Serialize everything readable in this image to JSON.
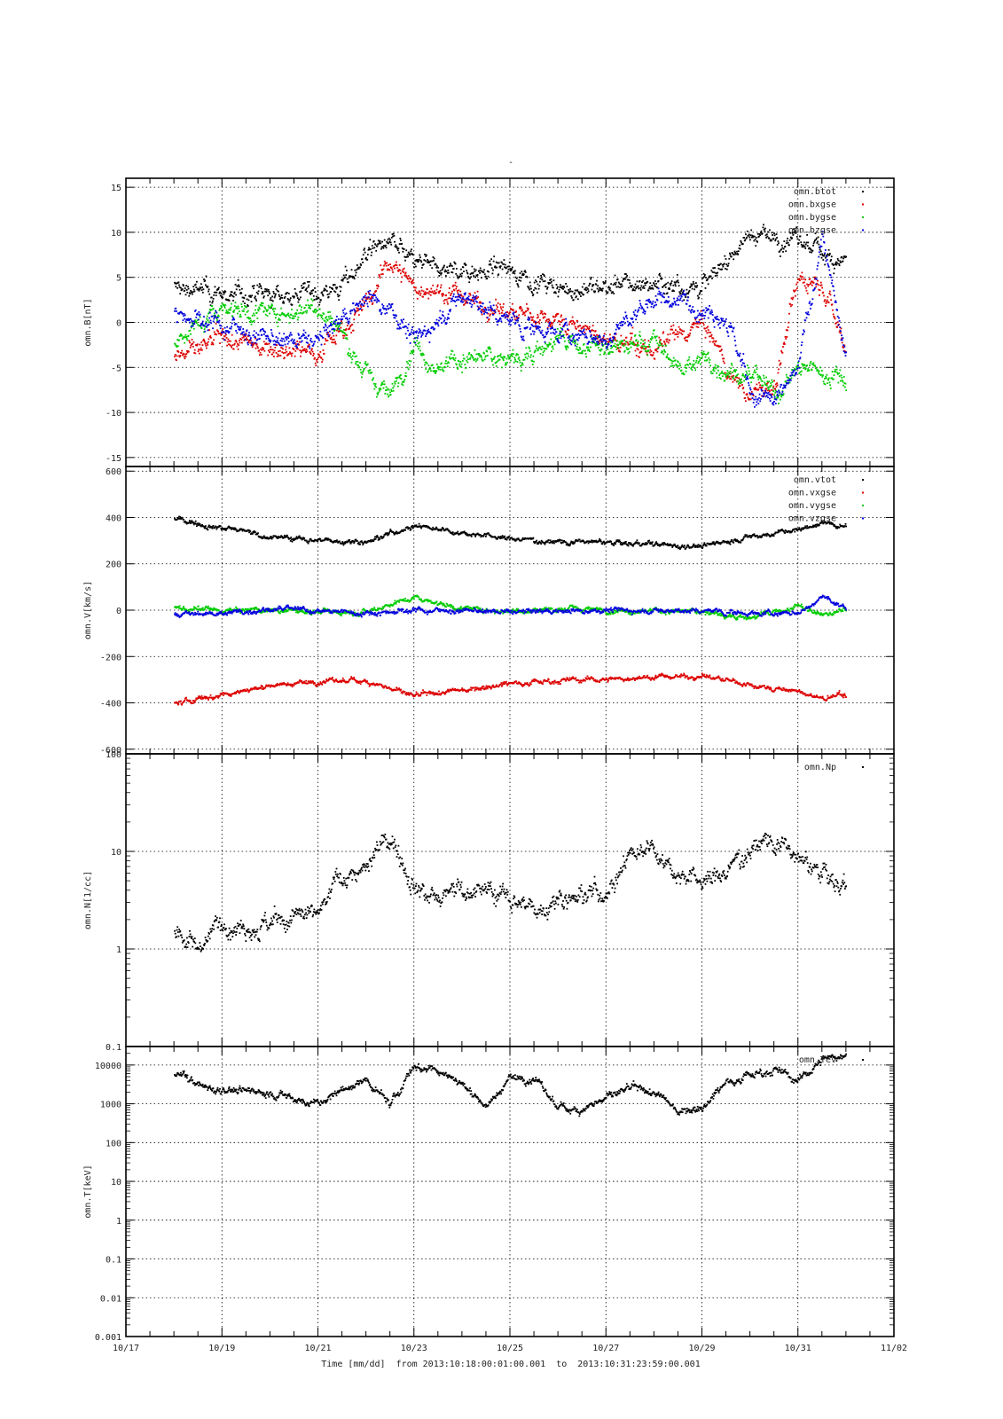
{
  "figure": {
    "title": "-",
    "x_axis_label": "Time [mm/dd]  from 2013:10:18:00:01:00.001  to  2013:10:31:23:59:00.001",
    "x_tick_labels": [
      "10/17",
      "10/19",
      "10/21",
      "10/23",
      "10/25",
      "10/27",
      "10/29",
      "10/31",
      "11/02"
    ],
    "x_range_days": [
      "2013-10-17",
      "2013-11-02"
    ],
    "data_range_days": [
      "2013-10-18",
      "2013-11-01"
    ]
  },
  "chart_data": [
    {
      "type": "scatter",
      "ylabel": "omn.B[nT]",
      "yscale": "linear",
      "ylim": [
        -16,
        16
      ],
      "yticks": [
        -15,
        -10,
        -5,
        0,
        5,
        10,
        15
      ],
      "grid": true,
      "legend_placement": "top-right",
      "series": [
        {
          "name": "omn.btot",
          "color": "#000000",
          "x": [
            "2013-10-18",
            "2013-10-19",
            "2013-10-20",
            "2013-10-21",
            "2013-10-21T12:00",
            "2013-10-22",
            "2013-10-22T12:00",
            "2013-10-23",
            "2013-10-23T12:00",
            "2013-10-24",
            "2013-10-25",
            "2013-10-26",
            "2013-10-27",
            "2013-10-28",
            "2013-10-29",
            "2013-10-30",
            "2013-10-30T12:00",
            "2013-10-31",
            "2013-10-31T12:00",
            "2013-11-01"
          ],
          "values": [
            4,
            3.2,
            3,
            3.5,
            4,
            8,
            9,
            6.5,
            6,
            6,
            6,
            3.5,
            4,
            4.5,
            4,
            10,
            9.5,
            9,
            8,
            7
          ]
        },
        {
          "name": "omn.bxgse",
          "color": "#dd0000",
          "x": [
            "2013-10-18",
            "2013-10-18T12:00",
            "2013-10-19",
            "2013-10-20",
            "2013-10-21",
            "2013-10-22",
            "2013-10-22T12:00",
            "2013-10-23",
            "2013-10-24",
            "2013-10-25",
            "2013-10-26",
            "2013-10-27",
            "2013-10-28",
            "2013-10-29",
            "2013-10-29T12:00",
            "2013-10-30",
            "2013-10-30T12:00",
            "2013-10-31",
            "2013-10-31T12:00",
            "2013-11-01"
          ],
          "values": [
            -3.5,
            -3,
            -2,
            -2.5,
            -3,
            2,
            7,
            4,
            3,
            1,
            0.5,
            -2,
            -3,
            0,
            -5,
            -8,
            -7,
            5,
            5,
            -3
          ]
        },
        {
          "name": "omn.bygse",
          "color": "#00cc00",
          "x": [
            "2013-10-18",
            "2013-10-19",
            "2013-10-20",
            "2013-10-21",
            "2013-10-21T12:00",
            "2013-10-22",
            "2013-10-22T12:00",
            "2013-10-23",
            "2013-10-23T12:00",
            "2013-10-24",
            "2013-10-25",
            "2013-10-26",
            "2013-10-27",
            "2013-10-28",
            "2013-10-28T12:00",
            "2013-10-29",
            "2013-10-30",
            "2013-10-30T12:00",
            "2013-10-31",
            "2013-11-01"
          ],
          "values": [
            -2,
            2,
            1,
            2,
            -1,
            -6,
            -8,
            -2,
            -5,
            -4,
            -4,
            -2,
            -3,
            -2,
            -5,
            -4,
            -6,
            -8,
            -5,
            -6
          ]
        },
        {
          "name": "omn.bzgse",
          "color": "#0000dd",
          "x": [
            "2013-10-18",
            "2013-10-19",
            "2013-10-20",
            "2013-10-21",
            "2013-10-22",
            "2013-10-22T12:00",
            "2013-10-23",
            "2013-10-24",
            "2013-10-25",
            "2013-10-26",
            "2013-10-27",
            "2013-10-28",
            "2013-10-29",
            "2013-10-29T12:00",
            "2013-10-30",
            "2013-10-30T12:00",
            "2013-10-31",
            "2013-10-31T12:00",
            "2013-11-01"
          ],
          "values": [
            1,
            0,
            -2,
            -2,
            3,
            2,
            -2,
            3,
            0,
            -1,
            -2,
            3,
            2,
            1,
            -8,
            -9,
            -5,
            10,
            -5
          ]
        }
      ]
    },
    {
      "type": "scatter",
      "ylabel": "omn.V[km/s]",
      "yscale": "linear",
      "ylim": [
        -620,
        620
      ],
      "yticks": [
        -600,
        -400,
        -200,
        0,
        200,
        400,
        600
      ],
      "grid": true,
      "legend_placement": "top-right",
      "series": [
        {
          "name": "omn.vtot",
          "color": "#000000",
          "x": [
            "2013-10-18",
            "2013-10-19",
            "2013-10-20",
            "2013-10-21",
            "2013-10-22",
            "2013-10-23",
            "2013-10-24",
            "2013-10-25",
            "2013-10-26",
            "2013-10-27",
            "2013-10-28",
            "2013-10-29",
            "2013-10-30",
            "2013-10-31",
            "2013-10-31T12:00",
            "2013-11-01"
          ],
          "values": [
            400,
            360,
            320,
            305,
            300,
            370,
            340,
            310,
            300,
            295,
            285,
            280,
            320,
            350,
            380,
            360
          ]
        },
        {
          "name": "omn.vxgse",
          "color": "#dd0000",
          "x": [
            "2013-10-18",
            "2013-10-19",
            "2013-10-20",
            "2013-10-21",
            "2013-10-22",
            "2013-10-23",
            "2013-10-24",
            "2013-10-25",
            "2013-10-26",
            "2013-10-27",
            "2013-10-28",
            "2013-10-29",
            "2013-10-30",
            "2013-10-31",
            "2013-10-31T12:00",
            "2013-11-01"
          ],
          "values": [
            -400,
            -360,
            -320,
            -305,
            -300,
            -370,
            -340,
            -310,
            -300,
            -295,
            -285,
            -280,
            -320,
            -350,
            -380,
            -360
          ]
        },
        {
          "name": "omn.vygse",
          "color": "#00cc00",
          "x": [
            "2013-10-18",
            "2013-10-19",
            "2013-10-20",
            "2013-10-21",
            "2013-10-22",
            "2013-10-23",
            "2013-10-24",
            "2013-10-25",
            "2013-10-26",
            "2013-10-27",
            "2013-10-28",
            "2013-10-29",
            "2013-10-30",
            "2013-10-31",
            "2013-10-31T12:00",
            "2013-11-01"
          ],
          "values": [
            10,
            0,
            5,
            -5,
            0,
            60,
            10,
            0,
            10,
            5,
            0,
            -5,
            -30,
            20,
            -20,
            5
          ]
        },
        {
          "name": "omn.vzgse",
          "color": "#0000dd",
          "x": [
            "2013-10-18",
            "2013-10-19",
            "2013-10-20",
            "2013-10-21",
            "2013-10-22",
            "2013-10-23",
            "2013-10-24",
            "2013-10-25",
            "2013-10-26",
            "2013-10-27",
            "2013-10-28",
            "2013-10-29",
            "2013-10-30",
            "2013-10-31",
            "2013-10-31T12:00",
            "2013-11-01"
          ],
          "values": [
            -15,
            -10,
            10,
            0,
            -10,
            5,
            0,
            -5,
            0,
            5,
            0,
            0,
            -10,
            -10,
            60,
            10
          ]
        }
      ]
    },
    {
      "type": "scatter",
      "ylabel": "omn.N[1/cc]",
      "yscale": "log",
      "ylim": [
        0.1,
        100
      ],
      "yticks": [
        0.1,
        1,
        10,
        100
      ],
      "grid": true,
      "legend_placement": "top-right",
      "series": [
        {
          "name": "omn.Np",
          "color": "#000000",
          "x": [
            "2013-10-18",
            "2013-10-18T12:00",
            "2013-10-19",
            "2013-10-20",
            "2013-10-21",
            "2013-10-21T12:00",
            "2013-10-22",
            "2013-10-22T12:00",
            "2013-10-23",
            "2013-10-23T12:00",
            "2013-10-24",
            "2013-10-25",
            "2013-10-25T12:00",
            "2013-10-26",
            "2013-10-27",
            "2013-10-27T12:00",
            "2013-10-28",
            "2013-10-28T12:00",
            "2013-10-29",
            "2013-10-29T12:00",
            "2013-10-30",
            "2013-10-30T12:00",
            "2013-10-31",
            "2013-10-31T12:00",
            "2013-11-01"
          ],
          "values": [
            1.6,
            1.1,
            2,
            1.8,
            2.3,
            6,
            6.5,
            15,
            5,
            3,
            4.5,
            3.5,
            2.5,
            3.5,
            4,
            10,
            12,
            6,
            5,
            6,
            12,
            14,
            8,
            6,
            4
          ]
        }
      ]
    },
    {
      "type": "scatter",
      "ylabel": "omn.T[keV]",
      "yscale": "log",
      "ylim": [
        0.001,
        30000
      ],
      "yticks": [
        0.001,
        0.01,
        0.1,
        1,
        10,
        100,
        1000,
        10000
      ],
      "ytick_labels": [
        "0.001",
        "0.01",
        "0.1",
        "1",
        "10",
        "100",
        "1000",
        "10000"
      ],
      "grid": true,
      "legend_placement": "top-right",
      "series": [
        {
          "name": "omn.Tev",
          "color": "#000000",
          "x": [
            "2013-10-18",
            "2013-10-18T12:00",
            "2013-10-19",
            "2013-10-20",
            "2013-10-21",
            "2013-10-21T12:00",
            "2013-10-22",
            "2013-10-22T12:00",
            "2013-10-23",
            "2013-10-23T12:00",
            "2013-10-24",
            "2013-10-24T12:00",
            "2013-10-25",
            "2013-10-25T12:00",
            "2013-10-26",
            "2013-10-26T12:00",
            "2013-10-27",
            "2013-10-27T12:00",
            "2013-10-28",
            "2013-10-28T12:00",
            "2013-10-29",
            "2013-10-29T12:00",
            "2013-10-30",
            "2013-10-30T12:00",
            "2013-10-31",
            "2013-10-31T12:00",
            "2013-11-01"
          ],
          "values": [
            7000,
            3000,
            2500,
            2000,
            1000,
            2500,
            4000,
            1000,
            10000,
            8000,
            3500,
            900,
            5000,
            4500,
            800,
            800,
            1500,
            2500,
            2000,
            700,
            900,
            4000,
            6000,
            8000,
            4000,
            15000,
            20000
          ]
        }
      ]
    }
  ]
}
